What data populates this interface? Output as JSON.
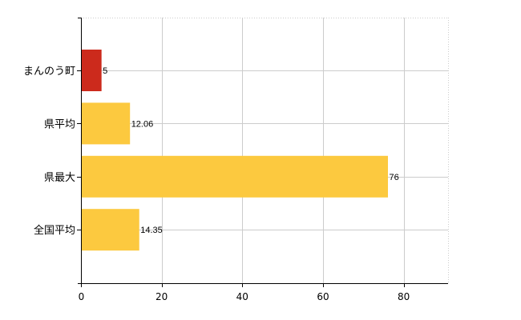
{
  "chart_data": {
    "type": "bar",
    "orientation": "horizontal",
    "categories": [
      "まんのう町",
      "県平均",
      "県最大",
      "全国平均"
    ],
    "values": [
      5,
      12.06,
      76,
      14.35
    ],
    "data_labels": [
      "5",
      "12.06",
      "76",
      "14.35"
    ],
    "bar_colors": [
      "#cc2a1c",
      "#fcc93f",
      "#fcc93f",
      "#fcc93f"
    ],
    "xlim": [
      0,
      91
    ],
    "x_ticks": [
      0,
      20,
      40,
      60,
      80
    ],
    "grid": true,
    "legend": "none",
    "title": "",
    "xlabel": "",
    "ylabel": ""
  }
}
